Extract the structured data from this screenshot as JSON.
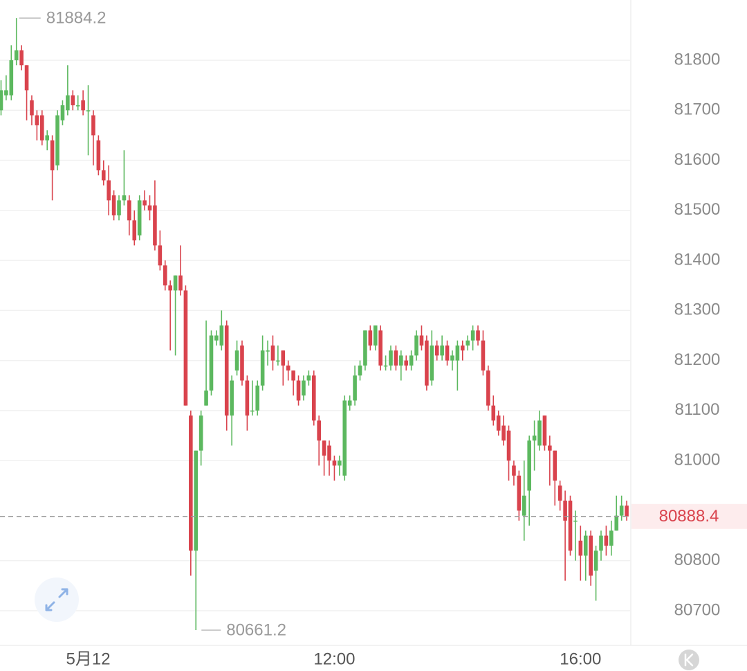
{
  "chart_data": {
    "type": "candlestick",
    "x": [
      395,
      400,
      405,
      410,
      415,
      420,
      425,
      430,
      435,
      440,
      445,
      450,
      455,
      460,
      465,
      470,
      475,
      480,
      485,
      490,
      495,
      500,
      505,
      510,
      515,
      520,
      525,
      530,
      535,
      540,
      545,
      550,
      555,
      560,
      565,
      570,
      575,
      580,
      585,
      590,
      595,
      600,
      605,
      610,
      615,
      620,
      625,
      630,
      635,
      640,
      645,
      650,
      655,
      660,
      665,
      670,
      675,
      680,
      685,
      690,
      695,
      700,
      705,
      710,
      715,
      720,
      725,
      730,
      735,
      740,
      745,
      750,
      755,
      760,
      765,
      770,
      775,
      780,
      785,
      790,
      795,
      800,
      805,
      810,
      815,
      820,
      825,
      830,
      835,
      840,
      845,
      850,
      855,
      860,
      865,
      870,
      875,
      880,
      885,
      890,
      895,
      900,
      905,
      910,
      915,
      920,
      925,
      930,
      935,
      940,
      945,
      950,
      955,
      960,
      965,
      970,
      975,
      980,
      985,
      990,
      995,
      1000,
      1005
    ],
    "open": [
      81700,
      81730,
      81730,
      81800,
      81820,
      81790,
      81720,
      81690,
      81690,
      81640,
      81640,
      81590,
      81680,
      81700,
      81730,
      81710,
      81720,
      81700,
      81690,
      81640,
      81580,
      81560,
      81530,
      81490,
      81520,
      81520,
      81480,
      81450,
      81520,
      81510,
      81510,
      81430,
      81390,
      81350,
      81340,
      81370,
      81340,
      81090,
      80820,
      81020,
      81110,
      81140,
      81240,
      81230,
      81270,
      81090,
      81180,
      81230,
      81160,
      81100,
      81100,
      81150,
      81220,
      81230,
      81200,
      81220,
      81190,
      81180,
      81160,
      81130,
      81160,
      81170,
      81080,
      81040,
      81030,
      81000,
      80990,
      80970,
      81110,
      81120,
      81170,
      81190,
      81260,
      81230,
      81260,
      81190,
      81190,
      81220,
      81190,
      81200,
      81190,
      81210,
      81250,
      81240,
      81160,
      81230,
      81210,
      81230,
      81200,
      81200,
      81230,
      81230,
      81240,
      81260,
      81240,
      81180,
      81110,
      81090,
      81070,
      81060,
      80990,
      80970,
      80890,
      80940,
      81040,
      81030,
      81090,
      81030,
      81020,
      80950,
      80920,
      80920,
      80880,
      80840,
      80810,
      80850,
      80780,
      80820,
      80850,
      80830,
      80860,
      80890,
      80910
    ],
    "high": [
      81760,
      81770,
      81830,
      81884.2,
      81830,
      81790,
      81730,
      81700,
      81700,
      81660,
      81650,
      81700,
      81720,
      81790,
      81740,
      81730,
      81740,
      81750,
      81700,
      81650,
      81600,
      81590,
      81540,
      81530,
      81620,
      81530,
      81500,
      81530,
      81540,
      81530,
      81560,
      81460,
      81400,
      81360,
      81370,
      81430,
      81350,
      81100,
      81020,
      81100,
      81280,
      81260,
      81260,
      81300,
      81280,
      81170,
      81240,
      81240,
      81170,
      81160,
      81160,
      81250,
      81240,
      81250,
      81230,
      81220,
      81200,
      81180,
      81170,
      81170,
      81180,
      81180,
      81090,
      81040,
      81040,
      81010,
      81010,
      81130,
      81130,
      81190,
      81200,
      81260,
      81270,
      81270,
      81270,
      81210,
      81230,
      81230,
      81220,
      81210,
      81220,
      81260,
      81270,
      81250,
      81260,
      81240,
      81250,
      81240,
      81220,
      81240,
      81240,
      81250,
      81270,
      81270,
      81260,
      81190,
      81130,
      81100,
      81090,
      81070,
      81000,
      80980,
      81000,
      81050,
      81080,
      81100,
      81090,
      81050,
      81020,
      80960,
      80940,
      80930,
      80900,
      80870,
      80860,
      80860,
      80830,
      80860,
      80870,
      80880,
      80930,
      80930,
      80920
    ],
    "low": [
      81690,
      81720,
      81720,
      81790,
      81780,
      81680,
      81670,
      81640,
      81630,
      81620,
      81520,
      81580,
      81670,
      81690,
      81700,
      81700,
      81690,
      81610,
      81590,
      81570,
      81550,
      81490,
      81480,
      81480,
      81510,
      81450,
      81430,
      81440,
      81500,
      81480,
      81420,
      81380,
      81340,
      81220,
      81210,
      81330,
      81110,
      80770,
      80661.2,
      80990,
      81110,
      81130,
      81230,
      81220,
      81060,
      81030,
      81170,
      81150,
      81060,
      81090,
      81090,
      81140,
      81190,
      81180,
      81190,
      81150,
      81160,
      81130,
      81110,
      81120,
      81150,
      81070,
      80990,
      80970,
      80970,
      80960,
      80970,
      80960,
      81100,
      81110,
      81160,
      81180,
      81220,
      81220,
      81180,
      81180,
      81180,
      81180,
      81160,
      81180,
      81180,
      81200,
      81220,
      81140,
      81150,
      81200,
      81200,
      81190,
      81180,
      81140,
      81200,
      81220,
      81220,
      81230,
      81170,
      81100,
      81070,
      81050,
      81030,
      80960,
      80950,
      80880,
      80840,
      80870,
      80980,
      81020,
      81020,
      80950,
      80910,
      80900,
      80760,
      80810,
      80800,
      80760,
      80760,
      80750,
      80720,
      80800,
      80810,
      80810,
      80860,
      80880,
      80880
    ],
    "close": [
      81740,
      81740,
      81800,
      81820,
      81790,
      81740,
      81690,
      81670,
      81640,
      81650,
      81580,
      81690,
      81710,
      81730,
      81710,
      81710,
      81700,
      81700,
      81650,
      81580,
      81560,
      81520,
      81490,
      81520,
      81530,
      81480,
      81440,
      81520,
      81510,
      81500,
      81430,
      81390,
      81350,
      81340,
      81370,
      81340,
      81110,
      80820,
      81020,
      81090,
      81140,
      81250,
      81250,
      81270,
      81090,
      81160,
      81220,
      81160,
      81090,
      81100,
      81150,
      81220,
      81220,
      81200,
      81200,
      81190,
      81180,
      81160,
      81120,
      81160,
      81170,
      81080,
      81040,
      81010,
      81000,
      80990,
      81000,
      81120,
      81120,
      81170,
      81190,
      81260,
      81230,
      81270,
      81190,
      81190,
      81220,
      81190,
      81210,
      81190,
      81210,
      81250,
      81230,
      81150,
      81230,
      81210,
      81230,
      81200,
      81210,
      81230,
      81220,
      81240,
      81260,
      81240,
      81180,
      81110,
      81080,
      81060,
      81040,
      81000,
      80970,
      80900,
      80930,
      81040,
      81050,
      81080,
      81030,
      81020,
      80960,
      80920,
      80880,
      80820,
      80880,
      80810,
      80850,
      80770,
      80820,
      80850,
      80830,
      80860,
      80890,
      80910,
      80888.4
    ],
    "up_color": "#5cb85f",
    "down_color": "#d9434d",
    "xlim": [
      394,
      1009
    ],
    "xticks": [
      {
        "value": 480,
        "label": "5月12"
      },
      {
        "value": 720,
        "label": "12:00"
      },
      {
        "value": 960,
        "label": "16:00"
      }
    ],
    "ylim": [
      80633.5,
      81920.4
    ],
    "yticks": [
      80700,
      80800,
      81000,
      81100,
      81200,
      81300,
      81400,
      81500,
      81600,
      81700,
      81800
    ],
    "grid": true
  }
}
